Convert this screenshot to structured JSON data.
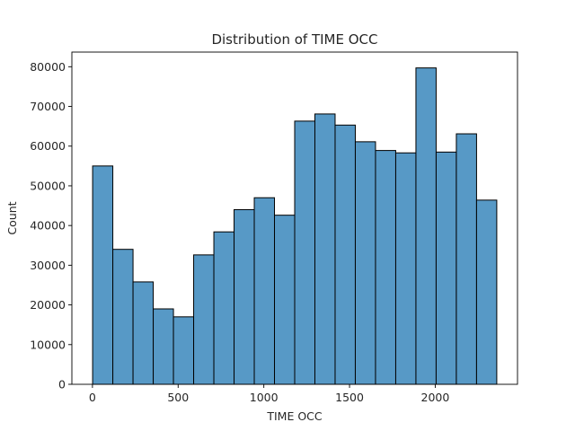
{
  "chart_data": {
    "type": "bar",
    "title": "Distribution of TIME OCC",
    "xlabel": "TIME OCC",
    "ylabel": "Count",
    "bin_edges": [
      1,
      118.9,
      236.8,
      354.7,
      472.6,
      590.5,
      708.4,
      826.3,
      944.2,
      1062.1,
      1180,
      1297.9,
      1415.8,
      1533.7,
      1651.6,
      1769.5,
      1887.4,
      2005.3,
      2123.2,
      2241.1,
      2359
    ],
    "values": [
      55000,
      34000,
      25800,
      19000,
      17000,
      32600,
      38400,
      44000,
      47000,
      42600,
      66300,
      68100,
      65300,
      61100,
      58900,
      58300,
      79700,
      58500,
      63100,
      46400
    ],
    "xlim": [
      -120,
      2480
    ],
    "ylim": [
      0,
      83690
    ],
    "xticks": [
      0,
      500,
      1000,
      1500,
      2000
    ],
    "yticks": [
      0,
      10000,
      20000,
      30000,
      40000,
      50000,
      60000,
      70000,
      80000
    ],
    "bar_color": "#5799c6",
    "edge_color": "#000000",
    "grid": false,
    "legend": "none"
  }
}
